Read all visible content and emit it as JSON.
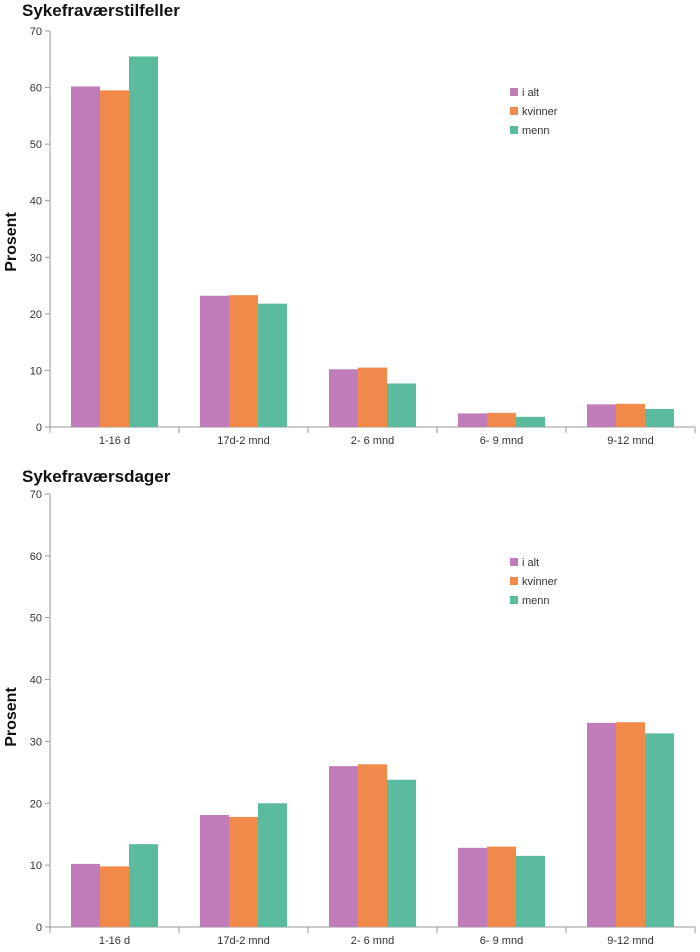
{
  "chart_data": [
    {
      "type": "bar",
      "title": "Sykefraværstilfeller",
      "ylabel": "Prosent",
      "xlabel": "",
      "ylim": [
        0,
        70
      ],
      "yticks": [
        0,
        10,
        20,
        30,
        40,
        50,
        60,
        70
      ],
      "categories": [
        "1-16 d",
        "17d-2 mnd",
        "2- 6 mnd",
        "6- 9 mnd",
        "9-12 mnd"
      ],
      "series": [
        {
          "name": "i alt",
          "color": "#C07CB8",
          "values": [
            60.2,
            23.2,
            10.2,
            2.4,
            4.0
          ]
        },
        {
          "name": "kvinner",
          "color": "#F0894A",
          "values": [
            59.5,
            23.3,
            10.5,
            2.5,
            4.1
          ]
        },
        {
          "name": "menn",
          "color": "#5BBB9E",
          "values": [
            65.5,
            21.8,
            7.7,
            1.8,
            3.2
          ]
        }
      ],
      "legend_position": "top-right",
      "grid": false
    },
    {
      "type": "bar",
      "title": "Sykefraværsdager",
      "ylabel": "Prosent",
      "xlabel": "",
      "ylim": [
        0,
        70
      ],
      "yticks": [
        0,
        10,
        20,
        30,
        40,
        50,
        60,
        70
      ],
      "categories": [
        "1-16 d",
        "17d-2 mnd",
        "2- 6 mnd",
        "6- 9 mnd",
        "9-12 mnd"
      ],
      "series": [
        {
          "name": "i alt",
          "color": "#C07CB8",
          "values": [
            10.2,
            18.1,
            26.0,
            12.8,
            33.0
          ]
        },
        {
          "name": "kvinner",
          "color": "#F0894A",
          "values": [
            9.8,
            17.8,
            26.3,
            13.0,
            33.1
          ]
        },
        {
          "name": "menn",
          "color": "#5BBB9E",
          "values": [
            13.4,
            20.0,
            23.8,
            11.5,
            31.3
          ]
        }
      ],
      "legend_position": "top-right",
      "grid": false
    }
  ]
}
